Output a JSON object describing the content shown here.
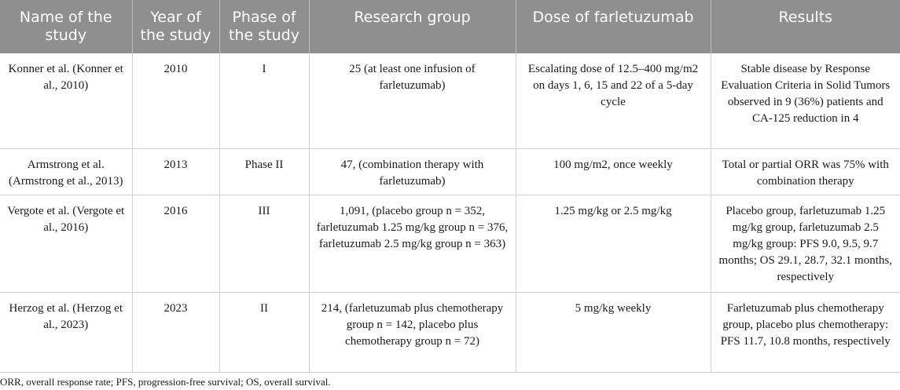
{
  "table": {
    "headers": [
      "Name of the study",
      "Year of the study",
      "Phase of the study",
      "Research group",
      "Dose of farletuzumab",
      "Results"
    ],
    "rows": [
      {
        "name": "Konner et al. (Konner et al., 2010)",
        "year": "2010",
        "phase": "I",
        "group": "25 (at least one infusion of farletuzumab)",
        "dose": "Escalating dose of 12.5–400 mg/m2 on days 1, 6, 15 and 22 of a 5-day cycle",
        "results": "Stable disease by Response Evaluation Criteria in Solid Tumors observed in 9 (36%) patients and CA-125 reduction in 4"
      },
      {
        "name": "Armstrong et al. (Armstrong et al., 2013)",
        "year": "2013",
        "phase": "Phase II",
        "group": "47, (combination therapy with farletuzumab)",
        "dose": "100 mg/m2, once weekly",
        "results": "Total or partial ORR was 75% with combination therapy"
      },
      {
        "name": "Vergote et al. (Vergote et al., 2016)",
        "year": "2016",
        "phase": "III",
        "group": "1,091, (placebo group n = 352, farletuzumab 1.25 mg/kg group n = 376, farletuzumab 2.5 mg/kg group n = 363)",
        "dose": "1.25 mg/kg or 2.5 mg/kg",
        "results": "Placebo group, farletuzumab 1.25 mg/kg group, farletuzumab 2.5 mg/kg group: PFS 9.0, 9.5, 9.7 months; OS 29.1, 28.7, 32.1 months, respectively"
      },
      {
        "name": "Herzog et al. (Herzog et al., 2023)",
        "year": "2023",
        "phase": "II",
        "group": "214, (farletuzumab plus chemotherapy group n = 142, placebo plus chemotherapy group n = 72)",
        "dose": "5 mg/kg weekly",
        "results": "Farletuzumab plus chemotherapy group, placebo plus chemotherapy: PFS 11.7, 10.8 months, respectively"
      }
    ]
  },
  "footnote": "ORR, overall response rate; PFS, progression-free survival; OS, overall survival."
}
